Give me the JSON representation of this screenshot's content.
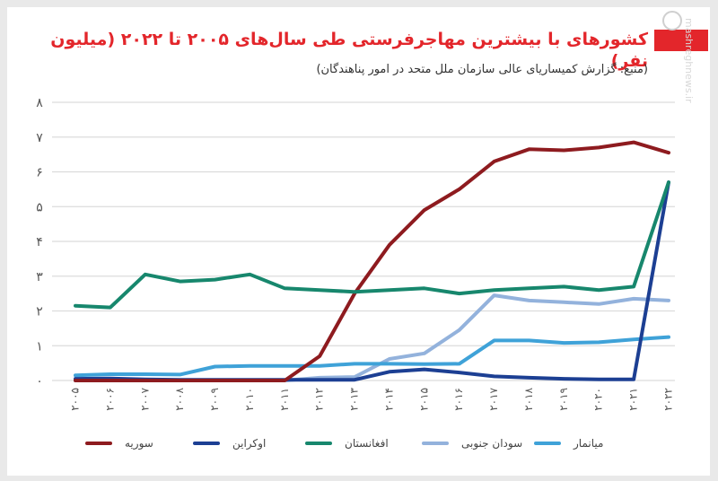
{
  "title": "کشورهای با بیشترین مهاجرفرستی طی سال‌های ۲۰۰۵ تا ۲۰۲۲ (میلیون نفر)",
  "subtitle": "(منبع: گزارش کمیساریای عالی سازمان ملل متحد در امور پناهندگان)",
  "watermark": "mashreghnews.ir",
  "chart_data": {
    "type": "line",
    "title": "کشورهای با بیشترین مهاجرفرستی طی سال‌های ۲۰۰۵ تا ۲۰۲۲ (میلیون نفر)",
    "x": [
      2005,
      2006,
      2007,
      2008,
      2009,
      2010,
      2011,
      2012,
      2013,
      2014,
      2015,
      2016,
      2017,
      2018,
      2019,
      2020,
      2021,
      2022
    ],
    "x_tick_labels": [
      "۲۰۰۵",
      "۲۰۰۶",
      "۲۰۰۷",
      "۲۰۰۸",
      "۲۰۰۹",
      "۲۰۱۰",
      "۲۰۱۱",
      "۲۰۱۲",
      "۲۰۱۳",
      "۲۰۱۴",
      "۲۰۱۵",
      "۲۰۱۶",
      "۲۰۱۷",
      "۲۰۱۸",
      "۲۰۱۹",
      "۲۰۲۰",
      "۲۰۲۱",
      "۲۰۲۲"
    ],
    "y_tick_labels": [
      "۰",
      "۱",
      "۲",
      "۳",
      "۴",
      "۵",
      "۶",
      "۷",
      "۸"
    ],
    "ylim": [
      0,
      8
    ],
    "grid": true,
    "legend_position": "bottom",
    "series": [
      {
        "name": "سوریه",
        "color": "#8e1b1f",
        "values": [
          0,
          0,
          0,
          0,
          0,
          0,
          0,
          0.7,
          2.5,
          3.9,
          4.9,
          5.5,
          6.3,
          6.65,
          6.62,
          6.7,
          6.85,
          6.55
        ]
      },
      {
        "name": "اوکراین",
        "color": "#1c3f93",
        "values": [
          0.05,
          0.06,
          0.03,
          0.02,
          0.02,
          0.02,
          0.02,
          0.02,
          0.02,
          0.25,
          0.32,
          0.23,
          0.12,
          0.08,
          0.05,
          0.03,
          0.03,
          5.7
        ]
      },
      {
        "name": "افغانستان",
        "color": "#17876d",
        "values": [
          2.15,
          2.1,
          3.05,
          2.85,
          2.9,
          3.05,
          2.65,
          2.6,
          2.55,
          2.6,
          2.65,
          2.5,
          2.6,
          2.65,
          2.7,
          2.6,
          2.7,
          5.7
        ]
      },
      {
        "name": "سودان جنوبی",
        "color": "#93b2dc",
        "values": [
          0,
          0,
          0,
          0,
          0,
          0,
          0,
          0.08,
          0.1,
          0.62,
          0.78,
          1.45,
          2.45,
          2.3,
          2.25,
          2.2,
          2.35,
          2.3
        ]
      },
      {
        "name": "میانمار",
        "color": "#3fa2d8",
        "values": [
          0.15,
          0.18,
          0.18,
          0.17,
          0.4,
          0.42,
          0.42,
          0.42,
          0.48,
          0.48,
          0.47,
          0.48,
          1.15,
          1.15,
          1.08,
          1.1,
          1.18,
          1.25
        ]
      }
    ]
  }
}
